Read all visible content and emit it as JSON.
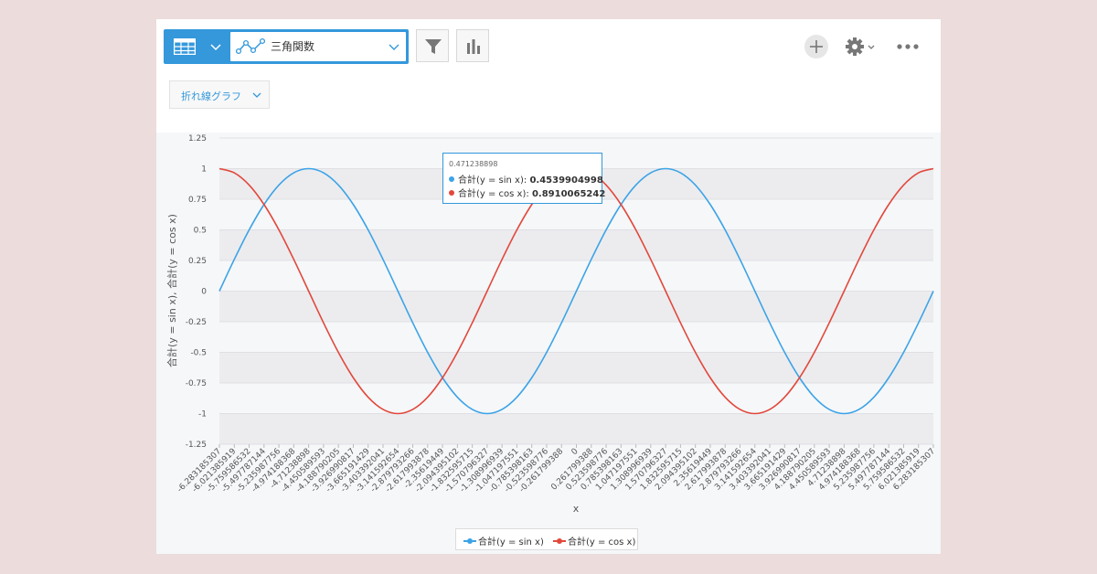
{
  "toolbar": {
    "view_name": "三角関数",
    "chart_type_label": "折れ線グラフ"
  },
  "icons": {
    "table_view": "grid-icon",
    "view_select_chevron": "chevron-down-icon",
    "view_type": "line-chart-icon",
    "filter": "funnel-icon",
    "graph": "bar-chart-icon",
    "add": "plus-icon",
    "settings": "gear-icon",
    "more": "ellipsis-icon"
  },
  "colors": {
    "accent": "#3498db",
    "sin": "#3ca3e6",
    "cos": "#e2483b"
  },
  "tooltip": {
    "x": "0.471238898",
    "rows": [
      {
        "label": "合計(y = sin x):",
        "value": "0.4539904998",
        "color": "#3ca3e6"
      },
      {
        "label": "合計(y = cos x):",
        "value": "0.8910065242",
        "color": "#e2483b"
      }
    ]
  },
  "chart_data": {
    "type": "line",
    "xlabel": "x",
    "ylabel": "合計(y = sin x), 合計(y = cos x)",
    "ylim": [
      -1.25,
      1.25
    ],
    "yticks": [
      "1.25",
      "1",
      "0.75",
      "0.5",
      "0.25",
      "0",
      "-0.25",
      "-0.5",
      "-0.75",
      "-1",
      "-1.25"
    ],
    "categories": [
      "-6.283185307",
      "-6.021385919",
      "-5.759586532",
      "-5.497787144",
      "-5.235987756",
      "-4.974188368",
      "-4.71238898",
      "-4.450589593",
      "-4.188790205",
      "-3.926990817",
      "-3.665191429",
      "-3.403392041",
      "-3.141592654",
      "-2.879793266",
      "-2.617993878",
      "-2.35619449",
      "-2.094395102",
      "-1.832595715",
      "-1.570796327",
      "-1.308996939",
      "-1.047197551",
      "-0.785398163",
      "-0.523598776",
      "-0.261799388",
      "0",
      "0.261799388",
      "0.523598776",
      "0.785398163",
      "1.047197551",
      "1.308996939",
      "1.570796327",
      "1.832595715",
      "2.094395102",
      "2.35619449",
      "2.617993878",
      "2.879793266",
      "3.141592654",
      "3.403392041",
      "3.665191429",
      "3.926990817",
      "4.188790205",
      "4.450589593",
      "4.71238898",
      "4.974188368",
      "5.235987756",
      "5.497787144",
      "5.759586532",
      "6.021385919",
      "6.283185307"
    ],
    "series": [
      {
        "name": "合計(y = sin x)",
        "values": [
          0,
          0.2588,
          0.5,
          0.7071,
          0.866,
          0.9659,
          1,
          0.9659,
          0.866,
          0.7071,
          0.5,
          0.2588,
          0,
          -0.2588,
          -0.5,
          -0.7071,
          -0.866,
          -0.9659,
          -1,
          -0.9659,
          -0.866,
          -0.7071,
          -0.5,
          -0.2588,
          0,
          0.2588,
          0.5,
          0.7071,
          0.866,
          0.9659,
          1,
          0.9659,
          0.866,
          0.7071,
          0.5,
          0.2588,
          0,
          -0.2588,
          -0.5,
          -0.7071,
          -0.866,
          -0.9659,
          -1,
          -0.9659,
          -0.866,
          -0.7071,
          -0.5,
          -0.2588,
          0
        ]
      },
      {
        "name": "合計(y = cos x)",
        "values": [
          1,
          0.9659,
          0.866,
          0.7071,
          0.5,
          0.2588,
          0,
          -0.2588,
          -0.5,
          -0.7071,
          -0.866,
          -0.9659,
          -1,
          -0.9659,
          -0.866,
          -0.7071,
          -0.5,
          -0.2588,
          0,
          0.2588,
          0.5,
          0.7071,
          0.866,
          0.9659,
          1,
          0.9659,
          0.866,
          0.7071,
          0.5,
          0.2588,
          0,
          -0.2588,
          -0.5,
          -0.7071,
          -0.866,
          -0.9659,
          -1,
          -0.9659,
          -0.866,
          -0.7071,
          -0.5,
          -0.2588,
          0,
          0.2588,
          0.5,
          0.7071,
          0.866,
          0.9659,
          1
        ]
      }
    ],
    "grid": true,
    "legend": "bottom-center"
  }
}
